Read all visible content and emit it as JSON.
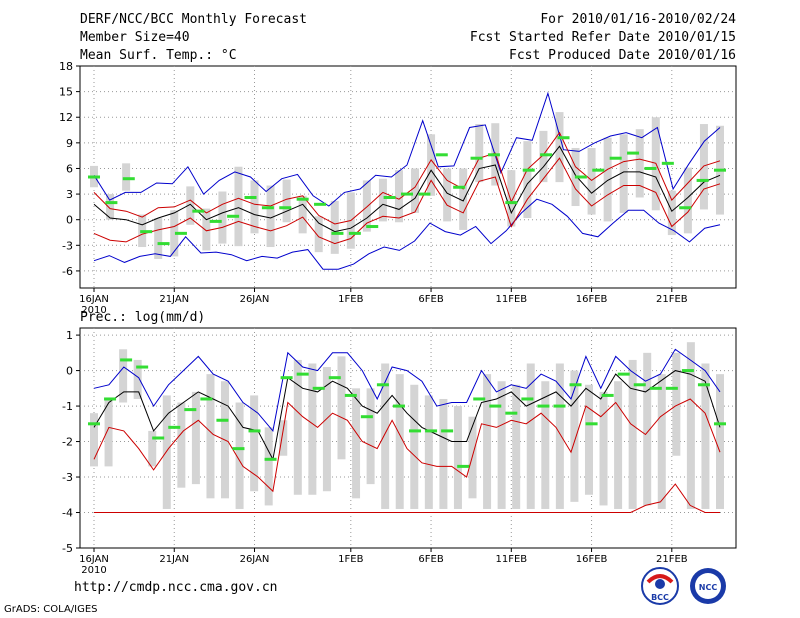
{
  "header": {
    "title": "DERF/NCC/BCC Monthly Forecast",
    "member": "Member Size=40",
    "variable": "Mean Surf. Temp.: °C",
    "for_range": "For 2010/01/16-2010/02/24",
    "started": "Fcst Started Refer Date 2010/01/15",
    "produced": "Fcst Produced Date 2010/01/16"
  },
  "footer": {
    "url": "http://cmdp.ncc.cma.gov.cn",
    "grads": "GrADS: COLA/IGES"
  },
  "logos": {
    "bcc": "BCC",
    "ncc": "NCC"
  },
  "colors": {
    "upper": "#0000cc",
    "mean": "#000000",
    "red": "#cc0000",
    "obs": "#33dd33",
    "box": "#d4d4d4",
    "grid": "#999999"
  },
  "chart_data": [
    {
      "type": "line",
      "title": "Mean Surf. Temp.: °C",
      "xlabel": "",
      "ylabel": "",
      "ylim": [
        -8,
        18
      ],
      "yticks": [
        -6,
        -3,
        0,
        3,
        6,
        9,
        12,
        15,
        18
      ],
      "ytick_labels": [
        "-6",
        "-3",
        "0",
        "3",
        "6",
        "9",
        "12",
        "15",
        "18"
      ],
      "xticks": [
        {
          "day": 0,
          "label": "16JAN",
          "sub": "2010"
        },
        {
          "day": 5,
          "label": "21JAN",
          "sub": ""
        },
        {
          "day": 10,
          "label": "26JAN",
          "sub": ""
        },
        {
          "day": 16,
          "label": "1FEB",
          "sub": ""
        },
        {
          "day": 21,
          "label": "6FEB",
          "sub": ""
        },
        {
          "day": 26,
          "label": "11FEB",
          "sub": ""
        },
        {
          "day": 31,
          "label": "16FEB",
          "sub": ""
        },
        {
          "day": 36,
          "label": "21FEB",
          "sub": ""
        }
      ],
      "series": [
        {
          "name": "max",
          "color": "#0000cc",
          "values": [
            -4.8,
            -4.2,
            -5.0,
            -4.3,
            -4.0,
            -4.3,
            -2.0,
            -3.9,
            -3.8,
            -4.1,
            -4.8,
            -4.3,
            -4.5,
            -3.8,
            -3.5,
            -5.8,
            -5.8,
            -5.2,
            -4.0,
            -3.2,
            -3.6,
            -2.5,
            -0.4,
            -1.4,
            -1.8,
            -0.8,
            -2.8,
            -1.3,
            0.8,
            2.4,
            1.8,
            0.4,
            -1.6,
            -2.0,
            -0.4,
            1.1,
            1.1,
            -0.4,
            -1.3,
            -2.6,
            -1.0,
            -0.6
          ]
        },
        {
          "name": "mean",
          "color": "#000000",
          "values": [
            1.8,
            0.2,
            0.0,
            -0.6,
            0.2,
            0.8,
            1.8,
            0.0,
            0.8,
            1.4,
            0.6,
            0.2,
            1.0,
            1.8,
            -0.4,
            -1.4,
            -1.0,
            0.2,
            1.8,
            1.2,
            2.5,
            5.8,
            3.1,
            2.2,
            6.0,
            6.4,
            0.8,
            4.2,
            6.2,
            8.6,
            5.2,
            3.1,
            4.6,
            5.6,
            5.6,
            5.0,
            1.0,
            2.6,
            4.4,
            5.2
          ]
        },
        {
          "name": "upper",
          "color": "#0000cc",
          "values": [
            5.2,
            2.3,
            3.2,
            3.2,
            4.3,
            4.2,
            6.2,
            3.0,
            4.6,
            5.6,
            5.0,
            3.3,
            4.8,
            5.3,
            2.8,
            1.6,
            3.2,
            3.6,
            5.2,
            5.0,
            6.4,
            11.6,
            6.2,
            6.3,
            10.8,
            11.1,
            5.5,
            9.6,
            9.3,
            14.8,
            8.2,
            8.0,
            9.0,
            9.8,
            10.2,
            9.6,
            10.8,
            3.6,
            6.5,
            9.2,
            10.8
          ]
        },
        {
          "name": "red_upper",
          "color": "#cc0000",
          "values": [
            3.2,
            1.3,
            1.0,
            0.3,
            1.4,
            1.5,
            2.3,
            0.8,
            1.8,
            2.5,
            1.8,
            1.6,
            2.4,
            2.8,
            0.5,
            -0.5,
            -0.1,
            1.5,
            3.2,
            2.4,
            3.8,
            7.0,
            4.6,
            3.6,
            7.2,
            7.8,
            2.1,
            5.9,
            7.6,
            10.2,
            6.2,
            4.6,
            5.9,
            6.8,
            7.1,
            6.6,
            2.3,
            4.3,
            6.3,
            6.9
          ]
        },
        {
          "name": "red_lower",
          "color": "#cc0000",
          "values": [
            -1.6,
            -2.4,
            -2.6,
            -1.7,
            -1.2,
            -0.8,
            0.2,
            -1.3,
            -0.9,
            -0.2,
            -0.8,
            -1.3,
            -0.7,
            0.3,
            -2.0,
            -2.8,
            -2.2,
            -0.4,
            0.4,
            0.2,
            0.9,
            4.6,
            1.7,
            0.8,
            4.5,
            5.0,
            -0.8,
            2.4,
            4.8,
            7.2,
            3.6,
            1.6,
            2.9,
            4.0,
            4.0,
            3.2,
            -0.8,
            0.9,
            3.6,
            4.2
          ]
        }
      ],
      "boxes": [
        [
          3.8,
          6.3
        ],
        [
          0.0,
          3.0
        ],
        [
          3.4,
          6.6
        ],
        [
          -3.2,
          0.6
        ],
        [
          -4.6,
          0.2
        ],
        [
          -4.3,
          1.1
        ],
        [
          -0.6,
          3.9
        ],
        [
          -3.6,
          1.3
        ],
        [
          -2.8,
          3.3
        ],
        [
          -3.1,
          6.2
        ],
        [
          -1.6,
          4.6
        ],
        [
          -3.2,
          4.0
        ],
        [
          -0.3,
          4.7
        ],
        [
          -1.6,
          2.8
        ],
        [
          -3.8,
          0.4
        ],
        [
          -4.0,
          2.2
        ],
        [
          -3.4,
          3.2
        ],
        [
          -1.4,
          4.6
        ],
        [
          -0.2,
          4.8
        ],
        [
          -0.3,
          5.8
        ],
        [
          0.8,
          6.0
        ],
        [
          2.8,
          10.0
        ],
        [
          -0.2,
          6.0
        ],
        [
          -1.2,
          6.0
        ],
        [
          4.4,
          11.2
        ],
        [
          4.0,
          11.3
        ],
        [
          -0.8,
          5.8
        ],
        [
          0.2,
          9.2
        ],
        [
          4.4,
          10.4
        ],
        [
          4.4,
          12.6
        ],
        [
          1.6,
          8.4
        ],
        [
          0.6,
          8.4
        ],
        [
          -0.2,
          9.6
        ],
        [
          0.8,
          10.0
        ],
        [
          2.6,
          10.6
        ],
        [
          1.1,
          12.0
        ],
        [
          -1.8,
          3.4
        ],
        [
          -1.6,
          6.1
        ],
        [
          1.2,
          11.2
        ],
        [
          0.6,
          11.0
        ]
      ],
      "obs": [
        5.0,
        2.0,
        4.8,
        -1.4,
        -2.8,
        -1.6,
        1.0,
        -0.2,
        0.4,
        2.6,
        1.4,
        1.4,
        2.4,
        1.8,
        -1.6,
        -1.6,
        -0.8,
        2.6,
        3.0,
        3.0,
        7.6,
        3.8,
        7.2,
        7.6,
        2.0,
        5.8,
        7.6,
        9.6,
        5.0,
        5.8,
        7.2,
        7.8,
        6.0,
        6.6,
        1.4,
        4.6,
        5.8
      ]
    },
    {
      "type": "line",
      "title": "Prec.: log(mm/d)",
      "xlabel": "",
      "ylabel": "",
      "ylim": [
        -5,
        1.2
      ],
      "yticks": [
        -5,
        -4,
        -3,
        -2,
        -1,
        0,
        1
      ],
      "ytick_labels": [
        "-5",
        "-4",
        "-3",
        "-2",
        "-1",
        "0",
        "1"
      ],
      "xticks": [
        {
          "day": 0,
          "label": "16JAN",
          "sub": "2010"
        },
        {
          "day": 5,
          "label": "21JAN",
          "sub": ""
        },
        {
          "day": 10,
          "label": "26JAN",
          "sub": ""
        },
        {
          "day": 16,
          "label": "1FEB",
          "sub": ""
        },
        {
          "day": 21,
          "label": "6FEB",
          "sub": ""
        },
        {
          "day": 26,
          "label": "11FEB",
          "sub": ""
        },
        {
          "day": 31,
          "label": "16FEB",
          "sub": ""
        },
        {
          "day": 36,
          "label": "21FEB",
          "sub": ""
        }
      ],
      "series": [
        {
          "name": "upper",
          "color": "#0000cc",
          "values": [
            -0.5,
            -0.4,
            0.1,
            -0.2,
            -1.0,
            -0.4,
            0.0,
            0.4,
            -0.1,
            -0.3,
            -0.9,
            -1.2,
            -1.7,
            0.5,
            0.1,
            0.0,
            0.5,
            0.5,
            0.0,
            -0.8,
            0.1,
            0.0,
            -0.3,
            -1.0,
            -0.9,
            -0.9,
            0.0,
            -0.6,
            -0.4,
            -0.5,
            -0.1,
            -0.3,
            -0.8,
            0.4,
            -0.5,
            0.4,
            0.0,
            -0.3,
            -0.1,
            0.6,
            0.3,
            0.0,
            -0.6
          ]
        },
        {
          "name": "mean",
          "color": "#000000",
          "values": [
            -1.6,
            -0.9,
            -0.6,
            -0.6,
            -1.7,
            -1.2,
            -0.9,
            -0.6,
            -0.8,
            -1.0,
            -1.6,
            -1.7,
            -2.5,
            -0.2,
            -0.5,
            -0.6,
            -0.3,
            -0.5,
            -1.0,
            -1.2,
            -0.7,
            -1.2,
            -1.6,
            -1.8,
            -2.0,
            -2.0,
            -0.9,
            -0.8,
            -0.6,
            -1.0,
            -0.8,
            -0.6,
            -1.0,
            -0.5,
            -0.8,
            -0.1,
            -0.5,
            -0.6,
            -0.3,
            0.0,
            -0.1,
            -0.3,
            -1.6
          ]
        },
        {
          "name": "red_lower",
          "color": "#cc0000",
          "values": [
            -2.5,
            -1.6,
            -1.7,
            -2.2,
            -2.8,
            -2.2,
            -1.7,
            -1.4,
            -1.8,
            -2.0,
            -2.7,
            -3.0,
            -3.4,
            -0.9,
            -1.3,
            -1.6,
            -1.2,
            -1.4,
            -2.0,
            -2.2,
            -1.4,
            -2.2,
            -2.6,
            -2.7,
            -2.7,
            -3.0,
            -1.5,
            -1.6,
            -1.4,
            -1.5,
            -1.2,
            -1.6,
            -2.3,
            -1.0,
            -1.3,
            -0.9,
            -1.5,
            -1.8,
            -1.3,
            -1.0,
            -0.8,
            -1.2,
            -2.3
          ]
        },
        {
          "name": "min",
          "color": "#cc0000",
          "values": [
            -4.0,
            -4.0,
            -4.0,
            -4.0,
            -4.0,
            -4.0,
            -4.0,
            -4.0,
            -4.0,
            -4.0,
            -4.0,
            -4.0,
            -4.0,
            -4.0,
            -4.0,
            -4.0,
            -4.0,
            -4.0,
            -4.0,
            -4.0,
            -4.0,
            -4.0,
            -4.0,
            -4.0,
            -4.0,
            -4.0,
            -4.0,
            -4.0,
            -4.0,
            -4.0,
            -4.0,
            -4.0,
            -4.0,
            -4.0,
            -4.0,
            -4.0,
            -4.0,
            -3.8,
            -3.7,
            -3.2,
            -3.8,
            -4.0,
            -4.0
          ]
        }
      ],
      "boxes": [
        [
          -2.7,
          -1.2
        ],
        [
          -2.7,
          -0.8
        ],
        [
          -0.9,
          0.6
        ],
        [
          -0.8,
          0.3
        ],
        [
          -2.7,
          -1.7
        ],
        [
          -3.9,
          -0.7
        ],
        [
          -3.3,
          -0.9
        ],
        [
          -3.2,
          -0.6
        ],
        [
          -3.6,
          -0.1
        ],
        [
          -3.6,
          -0.3
        ],
        [
          -3.9,
          -0.9
        ],
        [
          -3.4,
          -0.7
        ],
        [
          -3.8,
          -1.6
        ],
        [
          -2.4,
          -1.4
        ],
        [
          -3.5,
          0.3
        ],
        [
          -3.5,
          0.2
        ],
        [
          -3.4,
          0.1
        ],
        [
          -2.5,
          0.4
        ],
        [
          -3.6,
          -0.5
        ],
        [
          -3.2,
          -0.5
        ],
        [
          -3.9,
          0.2
        ],
        [
          -3.9,
          -0.1
        ],
        [
          -3.9,
          -0.4
        ],
        [
          -3.9,
          -0.7
        ],
        [
          -3.9,
          -0.8
        ],
        [
          -3.9,
          -1.0
        ],
        [
          -3.6,
          -1.3
        ],
        [
          -3.9,
          -0.1
        ],
        [
          -3.9,
          -0.3
        ],
        [
          -3.9,
          -0.4
        ],
        [
          -3.9,
          0.2
        ],
        [
          -3.9,
          -0.3
        ],
        [
          -3.9,
          0.2
        ],
        [
          -3.7,
          0.0
        ],
        [
          -3.5,
          -0.4
        ],
        [
          -3.8,
          -0.6
        ],
        [
          -3.9,
          -0.3
        ],
        [
          -3.9,
          0.3
        ],
        [
          -3.8,
          0.5
        ],
        [
          -3.9,
          -0.1
        ],
        [
          -2.4,
          0.5
        ],
        [
          -3.9,
          0.8
        ],
        [
          -3.9,
          0.2
        ],
        [
          -3.9,
          -0.1
        ]
      ],
      "obs": [
        -1.5,
        -0.8,
        0.3,
        0.1,
        -1.9,
        -1.6,
        -1.1,
        -0.8,
        -1.4,
        -2.2,
        -1.7,
        -2.5,
        -0.2,
        -0.1,
        -0.5,
        -0.2,
        -0.7,
        -1.3,
        -0.4,
        -1.0,
        -1.7,
        -1.7,
        -1.7,
        -2.7,
        -0.8,
        -1.0,
        -1.2,
        -0.8,
        -1.0,
        -1.0,
        -0.4,
        -1.5,
        -0.7,
        -0.1,
        -0.4,
        -0.5,
        -0.5,
        0.0,
        -0.4,
        -1.5
      ]
    }
  ]
}
